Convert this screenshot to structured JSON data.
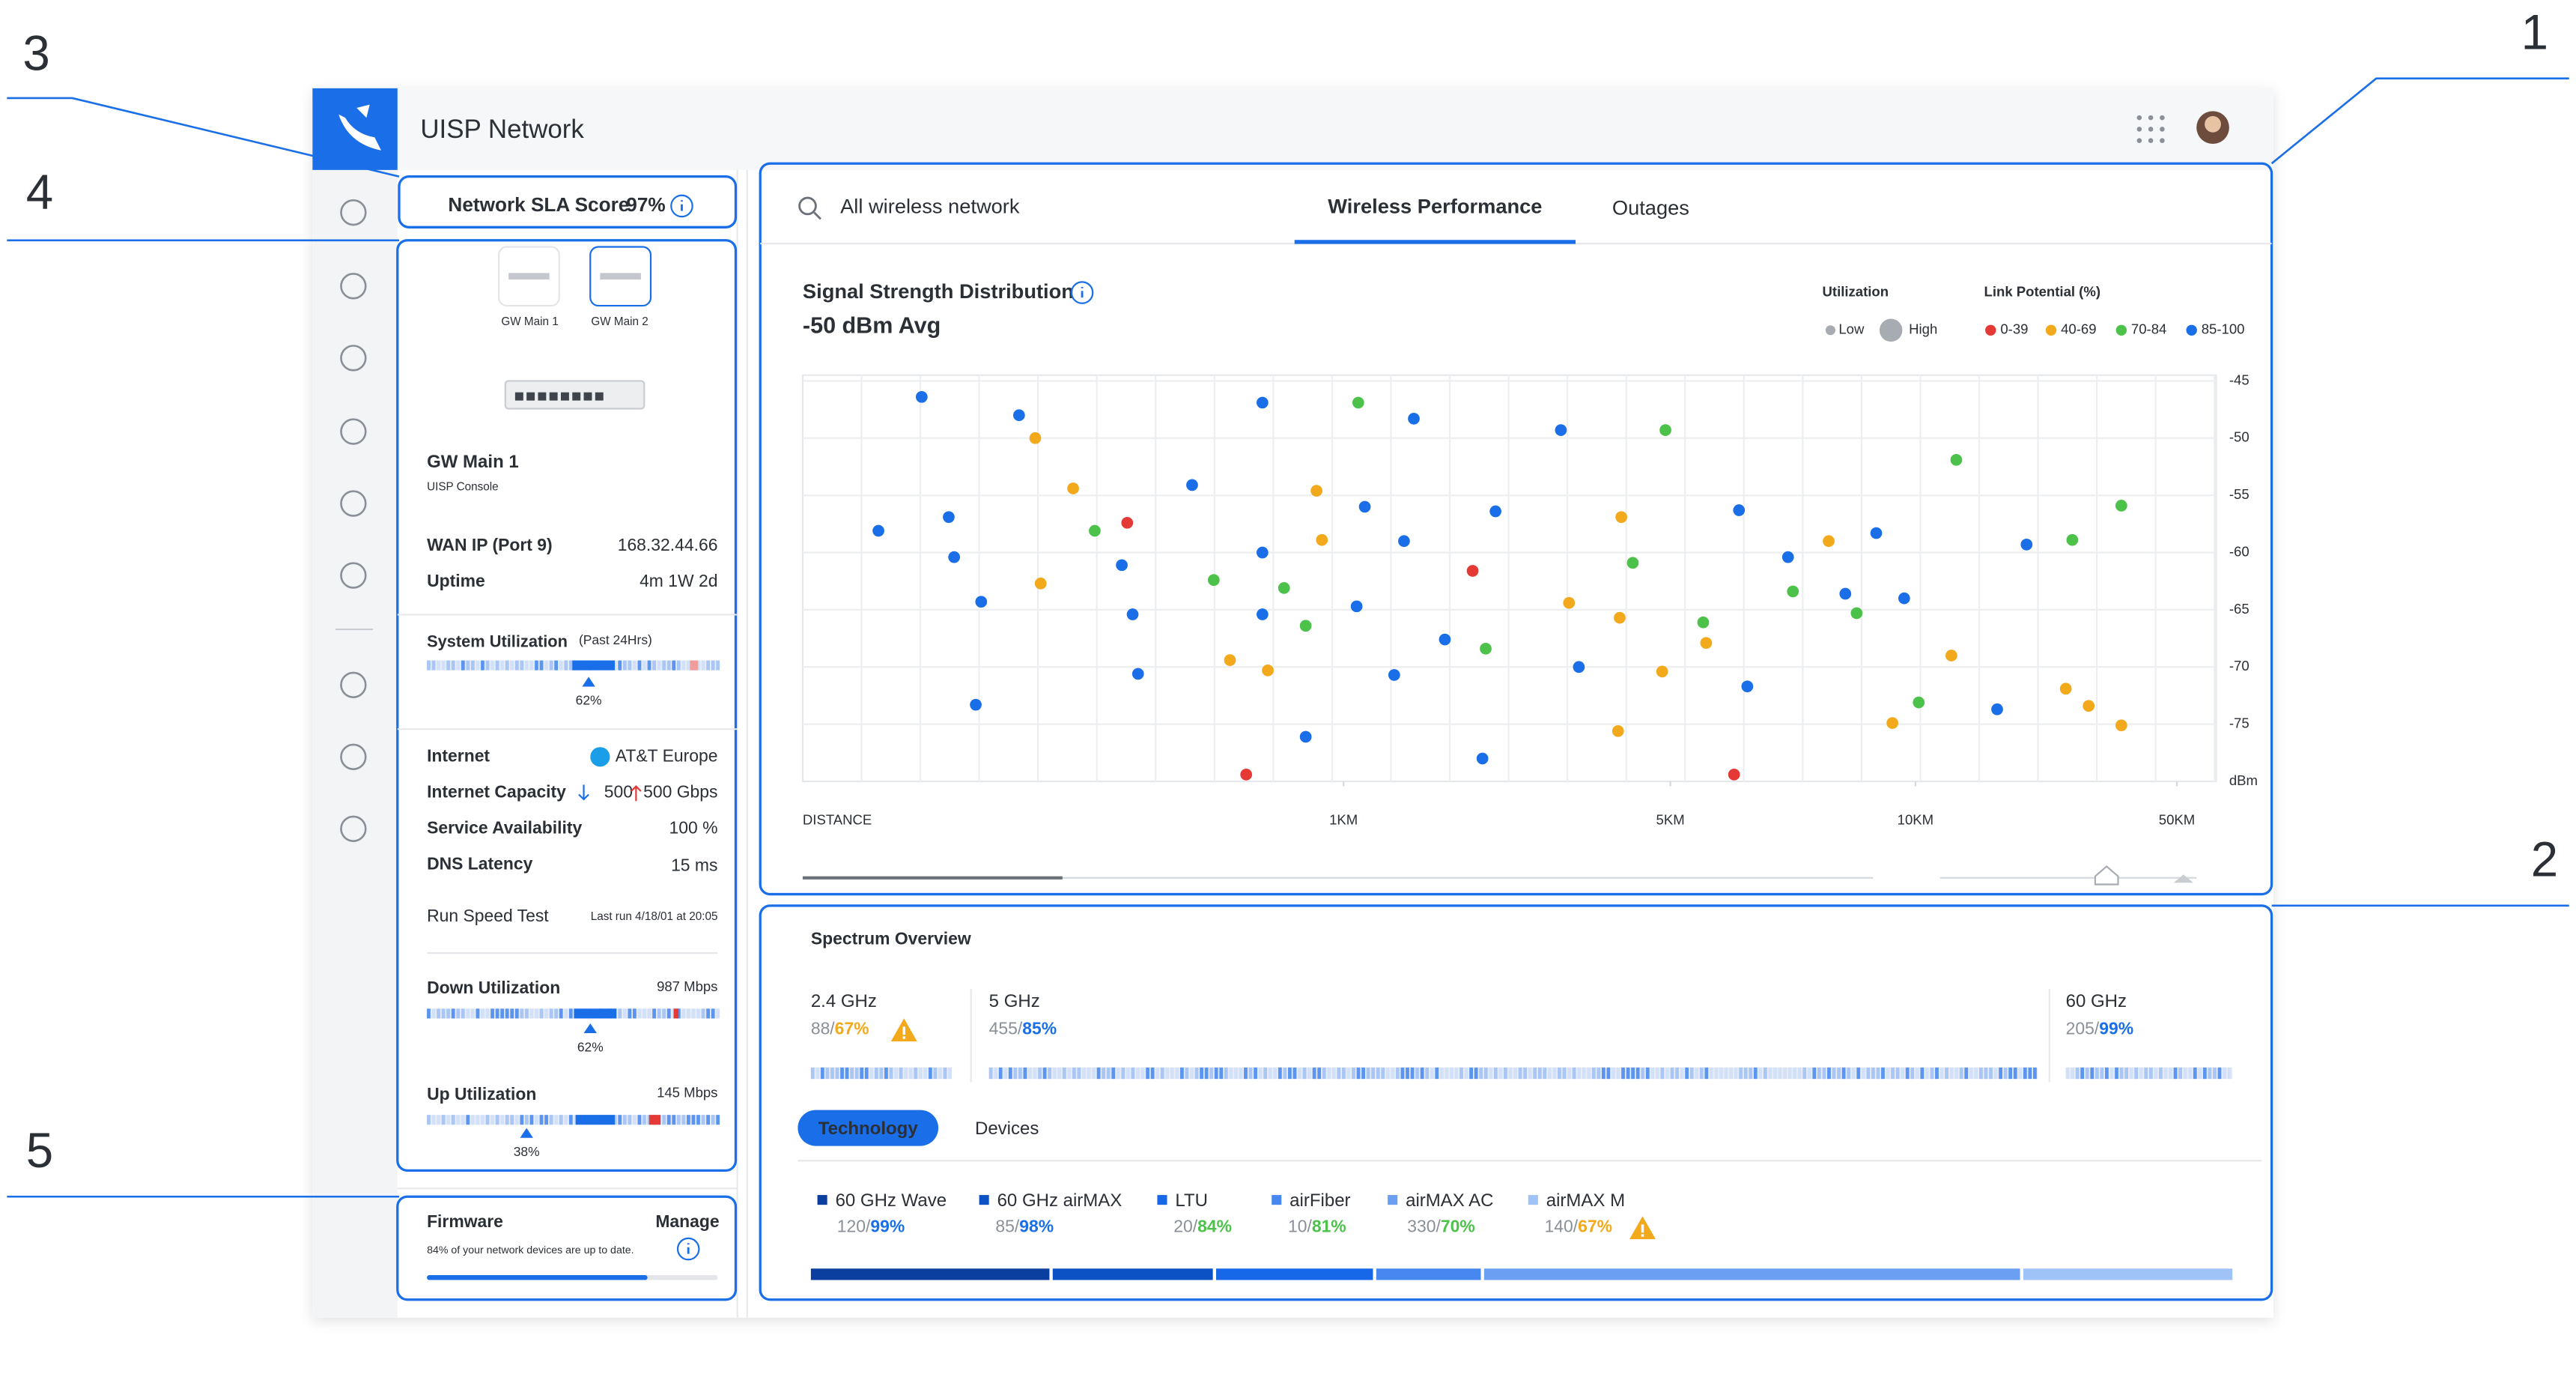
{
  "annotations": [
    "1",
    "2",
    "3",
    "4",
    "5"
  ],
  "app": {
    "title": "UISP Network"
  },
  "sla": {
    "label": "Network SLA Score",
    "value": "97%"
  },
  "device_tabs": [
    "GW Main 1",
    "GW Main 2"
  ],
  "device": {
    "name": "GW Main 1",
    "subtitle": "UISP Console",
    "rows": [
      [
        "WAN IP (Port 9)",
        "168.32.44.66"
      ],
      [
        "Uptime",
        "4m 1W 2d"
      ]
    ]
  },
  "system_utilization": {
    "label": "System Utilization",
    "period": "(Past 24Hrs)",
    "value": "62%"
  },
  "internet": {
    "rows": [
      [
        "Internet",
        "AT&T Europe"
      ],
      [
        "Internet Capacity",
        "500"
      ],
      [
        "Service Availability",
        "100 %"
      ],
      [
        "DNS Latency",
        "15 ms"
      ]
    ],
    "capacity_up": "500 Gbps"
  },
  "speed_test": {
    "action": "Run Speed Test",
    "last_run": "Last run 4/18/01 at 20:05"
  },
  "down_utilization": {
    "label": "Down Utilization",
    "rate": "987 Mbps",
    "value": "62%"
  },
  "up_utilization": {
    "label": "Up Utilization",
    "rate": "145 Mbps",
    "value": "38%"
  },
  "firmware": {
    "label": "Firmware",
    "action": "Manage",
    "note": "84% of your network devices are up to date."
  },
  "search": {
    "placeholder": "All wireless network"
  },
  "tabs": [
    "Wireless Performance",
    "Outages"
  ],
  "chart_data": {
    "type": "scatter",
    "title": "Signal Strength Distribution",
    "subtitle": "-50 dBm Avg",
    "size_legend": {
      "title": "Utilization",
      "low": "Low",
      "high": "High"
    },
    "legend_title": "Link Potential (%)",
    "xlabel": "DISTANCE",
    "yunit": "dBm",
    "xlim": [
      0,
      56
    ],
    "xticks": [
      {
        "value": 1,
        "label": "1KM"
      },
      {
        "value": 5,
        "label": "5KM"
      },
      {
        "value": 10,
        "label": "10KM"
      },
      {
        "value": 50,
        "label": "50KM"
      }
    ],
    "ylim": [
      -80,
      -44.5
    ],
    "yticks": [
      -45,
      -50,
      -55,
      -60,
      -65,
      -70,
      -75
    ],
    "grid": true,
    "series": [
      {
        "name": "0-39",
        "color": "#e53935",
        "x": [
          0.82,
          6.3,
          0.6,
          2.58
        ],
        "y": [
          -79.4,
          -79.4,
          -57.4,
          -61.6
        ]
      },
      {
        "name": "40-69",
        "color": "#f2a91c",
        "x": [
          0.43,
          0.5,
          4.4,
          8.23,
          5.73,
          33,
          36.5,
          9.53,
          0.44,
          0.96,
          3.76,
          4.9,
          15.5,
          4.38,
          0.79,
          0.86,
          4.36,
          41.5,
          0.95
        ],
        "y": [
          -50,
          -54.4,
          -56.9,
          -59,
          -67.9,
          -71.9,
          -73.4,
          -74.9,
          -62.7,
          -58.9,
          -64.4,
          -70.4,
          -69,
          -65.7,
          -69.4,
          -70.3,
          -75.6,
          -75.1,
          -54.6
        ]
      },
      {
        "name": "70-84",
        "color": "#4cc24a",
        "x": [
          1.18,
          4.94,
          16.25,
          41.5,
          34,
          0.54,
          4.54,
          0.93,
          2.74,
          8.8,
          5.67,
          10.5,
          7.5,
          0.89,
          0.76
        ],
        "y": [
          -46.9,
          -49.3,
          -51.9,
          -55.9,
          -58.9,
          -58.1,
          -60.9,
          -66.4,
          -68.4,
          -65.3,
          -66.1,
          -73.1,
          -63.4,
          -63.1,
          -62.4
        ]
      },
      {
        "name": "85-100",
        "color": "#1a6fe8",
        "x": [
          0.22,
          0.4,
          0.85,
          1.86,
          0.14,
          0.27,
          0.28,
          0.72,
          1.26,
          1.74,
          0.59,
          0.61,
          0.85,
          2.86,
          1.16,
          7.4,
          8.57,
          9.77,
          27,
          0.85,
          0.62,
          2.7,
          22.5,
          9.2,
          6.57,
          0.33,
          3.88,
          1.62,
          6.4,
          3.66,
          0.32,
          0.93,
          2.24
        ],
        "y": [
          -46.4,
          -48,
          -46.9,
          -48.3,
          -58.1,
          -56.9,
          -60.4,
          -54.1,
          -56,
          -59,
          -61.1,
          -65.4,
          -60,
          -56.4,
          -64.7,
          -60.4,
          -63.6,
          -64,
          -59.3,
          -65.4,
          -70.6,
          -78,
          -73.7,
          -58.3,
          -71.7,
          -64.3,
          -70,
          -70.7,
          -56.3,
          -49.3,
          -73.3,
          -76.1,
          -67.6
        ]
      }
    ]
  },
  "spectrum": {
    "title": "Spectrum Overview",
    "bands": [
      {
        "name": "2.4 GHz",
        "count": "88/",
        "pct": "67%",
        "color": "#f2a91c"
      },
      {
        "name": "5 GHz",
        "count": "455/",
        "pct": "85%",
        "color": "#1a6fe8"
      },
      {
        "name": "60 GHz",
        "count": "205/",
        "pct": "99%",
        "color": "#1a6fe8"
      }
    ]
  },
  "spectrum_tabs": [
    "Technology",
    "Devices"
  ],
  "technologies": [
    {
      "name": "60 GHz Wave",
      "count": "120/",
      "pct": "99%",
      "color": "#1a6fe8",
      "swatch": "#0a3fa0"
    },
    {
      "name": "60 GHz airMAX",
      "count": "85/",
      "pct": "98%",
      "color": "#1a6fe8",
      "swatch": "#0d52c4"
    },
    {
      "name": "LTU",
      "count": "20/",
      "pct": "84%",
      "color": "#4cc24a",
      "swatch": "#1668e8"
    },
    {
      "name": "airFiber",
      "count": "10/",
      "pct": "81%",
      "color": "#4cc24a",
      "swatch": "#4688f0"
    },
    {
      "name": "airMAX AC",
      "count": "330/",
      "pct": "70%",
      "color": "#4cc24a",
      "swatch": "#6a9ff2"
    },
    {
      "name": "airMAX M",
      "count": "140/",
      "pct": "67%",
      "color": "#f2a91c",
      "swatch": "#9fc2f7"
    }
  ]
}
